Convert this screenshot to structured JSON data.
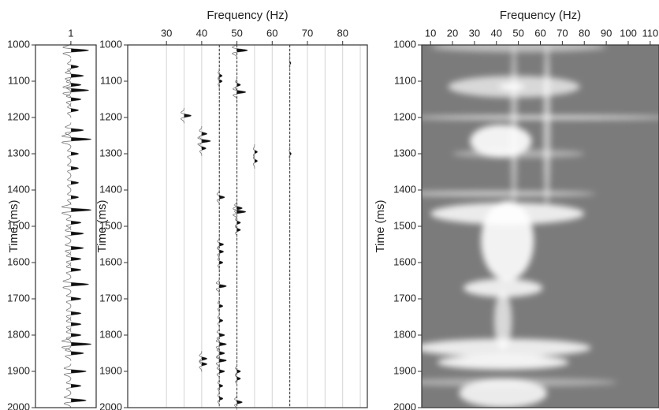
{
  "chart_data": [
    {
      "type": "wiggle",
      "ylabel": "Time (ms)",
      "xlim": [
        0.3,
        1.5
      ],
      "xticks": [
        1
      ],
      "ylim": [
        1000,
        2000
      ],
      "yticks": [
        1000,
        1100,
        1200,
        1300,
        1400,
        1500,
        1600,
        1700,
        1800,
        1900,
        2000
      ],
      "color": "#111111",
      "traces": [
        {
          "x": 1,
          "baseline": false,
          "events": [
            {
              "t": 1015,
              "a": 0.35
            },
            {
              "t": 1060,
              "a": 0.15
            },
            {
              "t": 1085,
              "a": 0.25
            },
            {
              "t": 1110,
              "a": 0.2
            },
            {
              "t": 1125,
              "a": 0.35
            },
            {
              "t": 1150,
              "a": 0.2
            },
            {
              "t": 1180,
              "a": 0.15
            },
            {
              "t": 1235,
              "a": 0.25
            },
            {
              "t": 1260,
              "a": 0.4
            },
            {
              "t": 1300,
              "a": 0.15
            },
            {
              "t": 1340,
              "a": 0.15
            },
            {
              "t": 1380,
              "a": 0.15
            },
            {
              "t": 1420,
              "a": 0.15
            },
            {
              "t": 1455,
              "a": 0.4
            },
            {
              "t": 1490,
              "a": 0.2
            },
            {
              "t": 1520,
              "a": 0.25
            },
            {
              "t": 1560,
              "a": 0.25
            },
            {
              "t": 1590,
              "a": 0.2
            },
            {
              "t": 1620,
              "a": 0.2
            },
            {
              "t": 1660,
              "a": 0.35
            },
            {
              "t": 1700,
              "a": 0.2
            },
            {
              "t": 1740,
              "a": 0.2
            },
            {
              "t": 1770,
              "a": 0.2
            },
            {
              "t": 1800,
              "a": 0.2
            },
            {
              "t": 1825,
              "a": 0.4
            },
            {
              "t": 1850,
              "a": 0.25
            },
            {
              "t": 1900,
              "a": 0.3
            },
            {
              "t": 1940,
              "a": 0.2
            },
            {
              "t": 1980,
              "a": 0.3
            }
          ]
        }
      ]
    },
    {
      "type": "wiggle",
      "xlabel": "Frequency (Hz)",
      "ylabel": "Time (ms)",
      "xlim": [
        19,
        87
      ],
      "xticks": [
        30,
        40,
        50,
        60,
        70,
        80
      ],
      "minor_xticks": [
        35,
        45,
        55,
        65,
        75,
        85
      ],
      "ylim": [
        1000,
        2000
      ],
      "yticks": [
        1000,
        1100,
        1200,
        1300,
        1400,
        1500,
        1600,
        1700,
        1800,
        1900,
        2000
      ],
      "color": "#111111",
      "grid": true,
      "traces": [
        {
          "x": 35,
          "baseline": false,
          "events": [
            {
              "t": 1195,
              "a": 2
            }
          ]
        },
        {
          "x": 40,
          "baseline": false,
          "events": [
            {
              "t": 1245,
              "a": 1.5
            },
            {
              "t": 1265,
              "a": 2.5
            },
            {
              "t": 1285,
              "a": 1.2
            },
            {
              "t": 1865,
              "a": 1.5
            },
            {
              "t": 1880,
              "a": 1.5
            }
          ]
        },
        {
          "x": 45,
          "baseline": true,
          "events": [
            {
              "t": 1085,
              "a": 0.8
            },
            {
              "t": 1100,
              "a": 0.8
            },
            {
              "t": 1420,
              "a": 1.5
            },
            {
              "t": 1550,
              "a": 1.2
            },
            {
              "t": 1570,
              "a": 1.2
            },
            {
              "t": 1600,
              "a": 1
            },
            {
              "t": 1665,
              "a": 2
            },
            {
              "t": 1720,
              "a": 1
            },
            {
              "t": 1760,
              "a": 1
            },
            {
              "t": 1800,
              "a": 1.5
            },
            {
              "t": 1825,
              "a": 2
            },
            {
              "t": 1850,
              "a": 1.5
            },
            {
              "t": 1870,
              "a": 2
            },
            {
              "t": 1900,
              "a": 1.5
            },
            {
              "t": 1940,
              "a": 1
            },
            {
              "t": 1975,
              "a": 1
            }
          ]
        },
        {
          "x": 50,
          "baseline": true,
          "events": [
            {
              "t": 1015,
              "a": 3
            },
            {
              "t": 1110,
              "a": 1
            },
            {
              "t": 1130,
              "a": 2.5
            },
            {
              "t": 1450,
              "a": 1.5
            },
            {
              "t": 1460,
              "a": 2.5
            },
            {
              "t": 1490,
              "a": 1
            },
            {
              "t": 1510,
              "a": 1
            },
            {
              "t": 1900,
              "a": 1
            },
            {
              "t": 1920,
              "a": 1
            },
            {
              "t": 1985,
              "a": 1.5
            }
          ]
        },
        {
          "x": 55,
          "baseline": false,
          "events": [
            {
              "t": 1295,
              "a": 0.8
            },
            {
              "t": 1320,
              "a": 0.8
            }
          ]
        },
        {
          "x": 65,
          "baseline": true,
          "events": [
            {
              "t": 1050,
              "a": 0.3
            },
            {
              "t": 1300,
              "a": 0.4
            }
          ]
        }
      ]
    },
    {
      "type": "spectrogram",
      "xlabel": "Frequency (Hz)",
      "ylabel": "Time (ms)",
      "xlim": [
        6,
        114
      ],
      "xticks": [
        10,
        20,
        30,
        40,
        50,
        60,
        70,
        80,
        90,
        100,
        110
      ],
      "ylim": [
        1000,
        2000
      ],
      "yticks": [
        1000,
        1100,
        1200,
        1300,
        1400,
        1500,
        1600,
        1700,
        1800,
        1900,
        2000
      ],
      "background": "#7b7b7b",
      "color": "#ffffff",
      "features": [
        {
          "t": 1220,
          "f": 48,
          "dt": 230,
          "df": 1.5,
          "level": 0.5
        },
        {
          "t": 1220,
          "f": 63,
          "dt": 230,
          "df": 1.5,
          "level": 0.6
        },
        {
          "t": 1005,
          "f": 50,
          "dt": 15,
          "df": 40,
          "level": 0.5
        },
        {
          "t": 1115,
          "f": 48,
          "dt": 30,
          "df": 30,
          "level": 0.7
        },
        {
          "t": 1115,
          "f": 47,
          "dt": 8,
          "df": 6,
          "level": 1
        },
        {
          "t": 1200,
          "f": 60,
          "dt": 5,
          "df": 60,
          "level": 0.9
        },
        {
          "t": 1265,
          "f": 42,
          "dt": 45,
          "df": 14,
          "level": 0.9
        },
        {
          "t": 1300,
          "f": 50,
          "dt": 12,
          "df": 30,
          "level": 0.4
        },
        {
          "t": 1410,
          "f": 40,
          "dt": 8,
          "df": 45,
          "level": 0.6
        },
        {
          "t": 1465,
          "f": 45,
          "dt": 30,
          "df": 35,
          "level": 0.85
        },
        {
          "t": 1540,
          "f": 45,
          "dt": 110,
          "df": 12,
          "level": 0.9
        },
        {
          "t": 1670,
          "f": 43,
          "dt": 25,
          "df": 18,
          "level": 0.85
        },
        {
          "t": 1760,
          "f": 43,
          "dt": 80,
          "df": 4,
          "level": 0.7
        },
        {
          "t": 1835,
          "f": 43,
          "dt": 25,
          "df": 40,
          "level": 0.85
        },
        {
          "t": 1875,
          "f": 43,
          "dt": 20,
          "df": 30,
          "level": 0.9
        },
        {
          "t": 1930,
          "f": 45,
          "dt": 12,
          "df": 50,
          "level": 0.4
        },
        {
          "t": 1960,
          "f": 43,
          "dt": 40,
          "df": 20,
          "level": 0.85
        }
      ]
    }
  ]
}
